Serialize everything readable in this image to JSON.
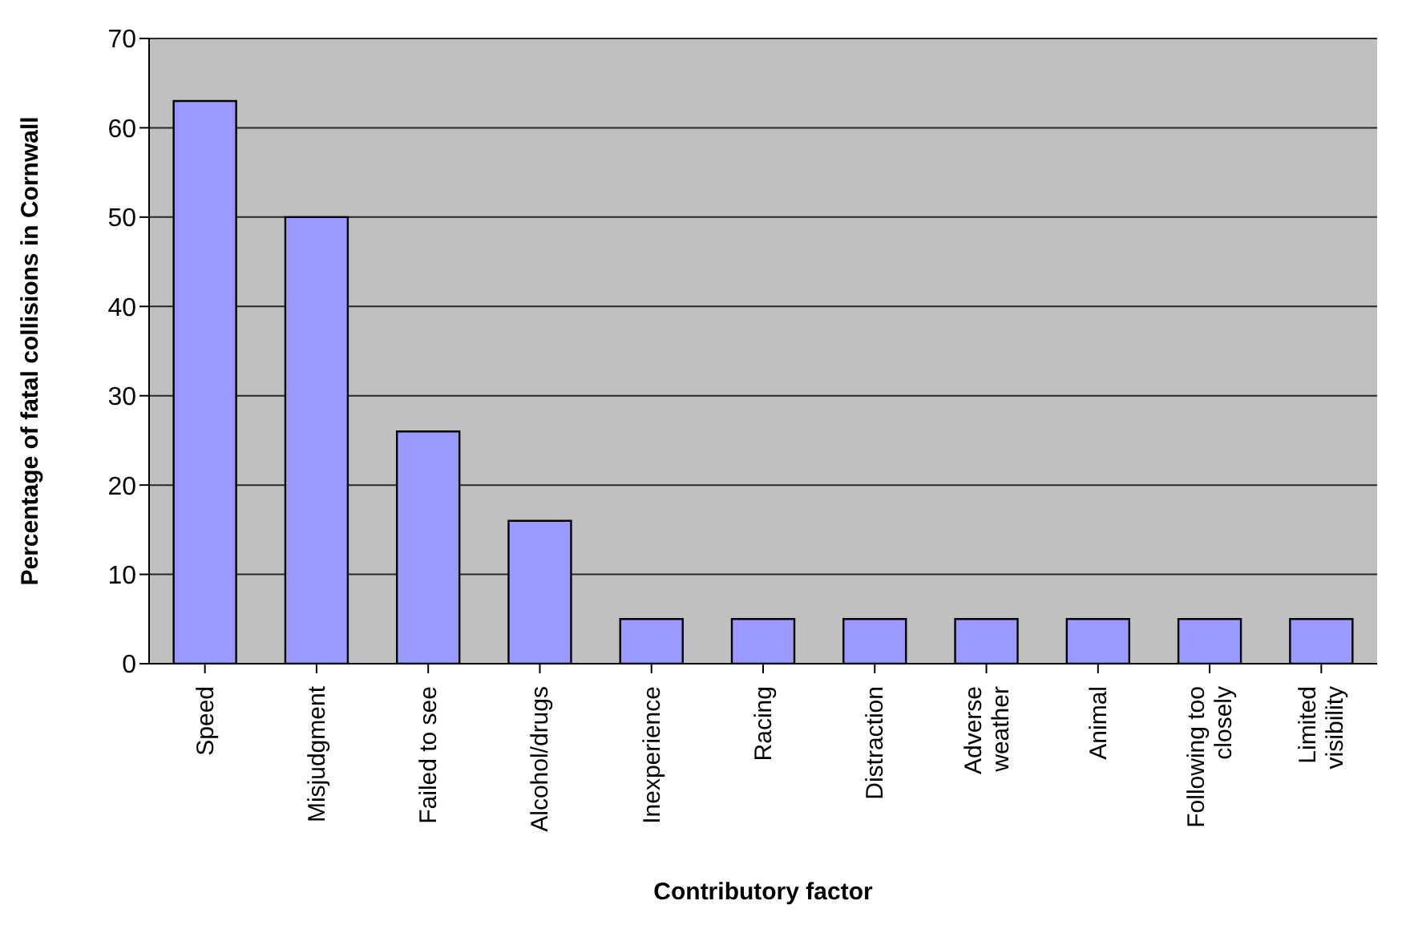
{
  "chart_data": {
    "type": "bar",
    "xlabel": "Contributory factor",
    "ylabel": "Percentage of fatal collisions in Cornwall",
    "categories": [
      "Speed",
      "Misjudgment",
      "Failed to see",
      "Alcohol/drugs",
      "Inexperience",
      "Racing",
      "Distraction",
      "Adverse weather",
      "Animal",
      "Following too closely",
      "Limited visibility"
    ],
    "values": [
      63,
      50,
      26,
      16,
      5,
      5,
      5,
      5,
      5,
      5,
      5
    ],
    "color": "#9999ff",
    "ylim": [
      0,
      70
    ],
    "yticks": [
      0,
      10,
      20,
      30,
      40,
      50,
      60,
      70
    ],
    "grid": "y"
  }
}
